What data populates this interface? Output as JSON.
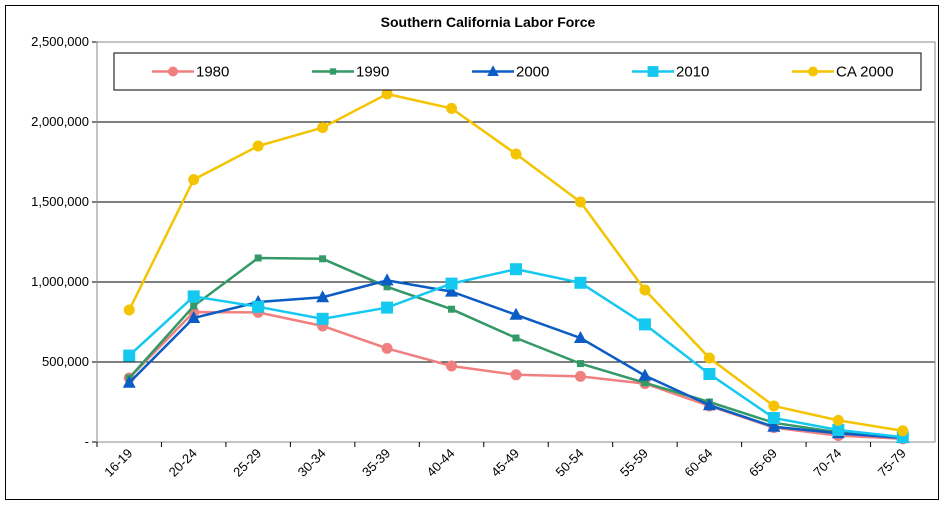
{
  "chart_data": {
    "type": "line",
    "title": "Southern California Labor Force",
    "categories": [
      "16-19",
      "20-24",
      "25-29",
      "30-34",
      "35-39",
      "40-44",
      "45-49",
      "50-54",
      "55-59",
      "60-64",
      "65-69",
      "70-74",
      "75-79"
    ],
    "series": [
      {
        "name": "1980",
        "color": "#f08080",
        "marker": "circle",
        "values": [
          400000,
          812000,
          810000,
          725000,
          585000,
          475000,
          420000,
          410000,
          365000,
          225000,
          90000,
          40000,
          20000
        ]
      },
      {
        "name": "1990",
        "color": "#339966",
        "marker": "square",
        "values": [
          400000,
          850000,
          1150000,
          1145000,
          970000,
          830000,
          650000,
          490000,
          370000,
          250000,
          120000,
          60000,
          30000
        ]
      },
      {
        "name": "2000",
        "color": "#0b5cc4",
        "marker": "triangle",
        "values": [
          370000,
          775000,
          875000,
          905000,
          1010000,
          940000,
          795000,
          650000,
          415000,
          230000,
          95000,
          55000,
          25000
        ]
      },
      {
        "name": "2010",
        "color": "#14c8f0",
        "marker": "square",
        "values": [
          540000,
          910000,
          845000,
          770000,
          840000,
          990000,
          1080000,
          995000,
          735000,
          425000,
          150000,
          75000,
          30000
        ]
      },
      {
        "name": "CA 2000",
        "color": "#f5c400",
        "marker": "circle",
        "values": [
          825000,
          1640000,
          1850000,
          1965000,
          2175000,
          2085000,
          1800000,
          1500000,
          950000,
          525000,
          225000,
          135000,
          70000
        ]
      }
    ],
    "ylim": [
      0,
      2500000
    ],
    "yticks": [
      {
        "value": 0,
        "label": "-"
      },
      {
        "value": 500000,
        "label": "500,000"
      },
      {
        "value": 1000000,
        "label": "1,000,000"
      },
      {
        "value": 1500000,
        "label": "1,500,000"
      },
      {
        "value": 2000000,
        "label": "2,000,000"
      },
      {
        "value": 2500000,
        "label": "2,500,000"
      }
    ],
    "grid": true,
    "legend": "top"
  }
}
